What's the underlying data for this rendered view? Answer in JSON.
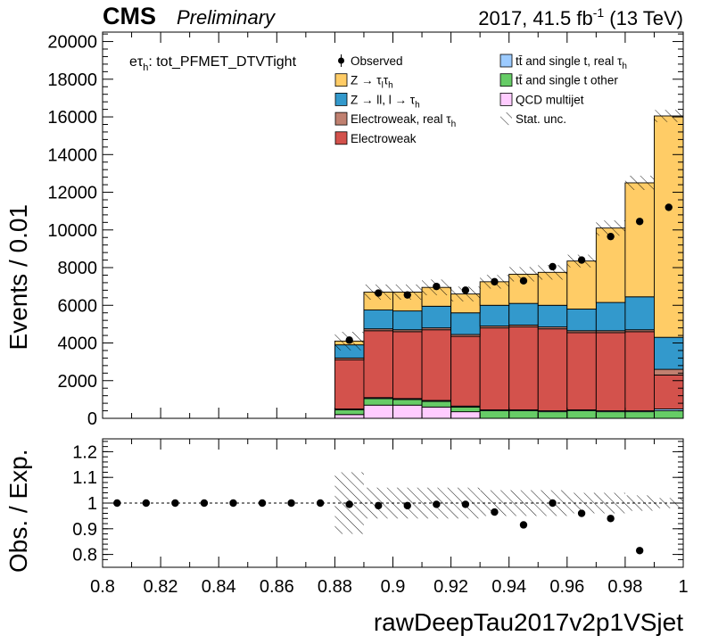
{
  "header": {
    "experiment": "CMS",
    "status": "Preliminary",
    "lumi_prefix": "2017, 41.5 fb",
    "lumi_exp": "-1",
    "lumi_suffix": " (13 TeV)"
  },
  "channel_label": {
    "prefix": "eτ",
    "sub": "h",
    "suffix": ": tot_PFMET_DTVTight"
  },
  "colors": {
    "ztt": "#ffcc66",
    "zll": "#3399cc",
    "ewk_real_tau": "#c08070",
    "ewk": "#d3524c",
    "ttbar_real_tau": "#9ccbff",
    "ttbar_other": "#66cc66",
    "qcd": "#ffccff"
  },
  "legend": [
    {
      "key": "observed",
      "label": "Observed",
      "sub": "",
      "style": "marker"
    },
    {
      "key": "ttbar_real_tau",
      "label": "tt̄ and single t, real τ",
      "sub": "h",
      "style": "box"
    },
    {
      "key": "ztt",
      "label": "Z → ττ",
      "sub": "l h",
      "style": "box"
    },
    {
      "key": "ttbar_other",
      "label": "tt̄ and single t other",
      "sub": "",
      "style": "box"
    },
    {
      "key": "zll",
      "label": "Z → ll, l → τ",
      "sub": "h",
      "style": "box"
    },
    {
      "key": "qcd",
      "label": "QCD multijet",
      "sub": "",
      "style": "box"
    },
    {
      "key": "ewk_real_tau",
      "label": "Electroweak, real τ",
      "sub": "h",
      "style": "box"
    },
    {
      "key": "stat",
      "label": "Stat. unc.",
      "sub": "",
      "style": "hatch"
    },
    {
      "key": "ewk",
      "label": "Electroweak",
      "sub": "",
      "style": "box"
    }
  ],
  "chart_data": [
    {
      "type": "bar",
      "stacked": true,
      "ylabel": "Events / 0.01",
      "ylim": [
        0,
        20500
      ],
      "xlim": [
        0.8,
        1.0
      ],
      "yticks": [
        0,
        2000,
        4000,
        6000,
        8000,
        10000,
        12000,
        14000,
        16000,
        18000,
        20000
      ],
      "bin_low_edges": [
        0.88,
        0.89,
        0.9,
        0.91,
        0.92,
        0.93,
        0.94,
        0.95,
        0.96,
        0.97,
        0.98,
        0.99
      ],
      "bin_width": 0.01,
      "series": [
        {
          "key": "qcd",
          "name": "QCD multijet",
          "values": [
            200,
            700,
            700,
            600,
            350,
            0,
            0,
            0,
            0,
            0,
            0,
            0
          ]
        },
        {
          "key": "ttbar_other",
          "name": "tt̄ and single t other",
          "values": [
            250,
            350,
            300,
            300,
            250,
            400,
            400,
            350,
            400,
            350,
            350,
            400
          ]
        },
        {
          "key": "ttbar_real_tau",
          "name": "tt̄ and single t, real τ",
          "values": [
            50,
            50,
            50,
            50,
            50,
            50,
            50,
            50,
            50,
            50,
            50,
            100
          ]
        },
        {
          "key": "ewk",
          "name": "Electroweak",
          "values": [
            2600,
            3550,
            3550,
            3750,
            3700,
            4350,
            4400,
            4350,
            4100,
            4150,
            4200,
            1800
          ]
        },
        {
          "key": "ewk_real_tau",
          "name": "Electroweak, real τ",
          "values": [
            100,
            100,
            100,
            100,
            100,
            100,
            100,
            100,
            100,
            100,
            100,
            300
          ]
        },
        {
          "key": "zll",
          "name": "Z → ll, l → τh",
          "values": [
            700,
            1000,
            1000,
            1150,
            1150,
            1100,
            1150,
            1150,
            1150,
            1500,
            1750,
            1700
          ]
        },
        {
          "key": "ztt",
          "name": "Z → τlτh",
          "values": [
            200,
            950,
            1000,
            1000,
            1000,
            1250,
            1550,
            1750,
            2550,
            3950,
            6050,
            11750
          ]
        }
      ],
      "stat_unc_rel": [
        0.12,
        0.06,
        0.06,
        0.06,
        0.06,
        0.05,
        0.05,
        0.05,
        0.04,
        0.04,
        0.03,
        0.02
      ],
      "observed": {
        "name": "Observed",
        "x": [
          0.885,
          0.895,
          0.905,
          0.915,
          0.925,
          0.935,
          0.945,
          0.955,
          0.965,
          0.975,
          0.985,
          0.995
        ],
        "y": [
          4150,
          6650,
          6550,
          7000,
          6800,
          7250,
          7300,
          8050,
          8400,
          9650,
          10450,
          11200
        ]
      }
    },
    {
      "type": "scatter",
      "ylabel": "Obs. / Exp.",
      "xlabel": "rawDeepTau2017v2p1VSjet",
      "ylim": [
        0.75,
        1.25
      ],
      "xlim": [
        0.8,
        1.0
      ],
      "yticks": [
        0.8,
        0.9,
        1.0,
        1.1,
        1.2
      ],
      "ytick_labels": [
        "0.8",
        "0.9",
        "1",
        "1.1",
        "1.2"
      ],
      "xticks": [
        0.8,
        0.82,
        0.84,
        0.86,
        0.88,
        0.9,
        0.92,
        0.94,
        0.96,
        0.98,
        1.0
      ],
      "xtick_labels": [
        "0.8",
        "0.82",
        "0.84",
        "0.86",
        "0.88",
        "0.9",
        "0.92",
        "0.94",
        "0.96",
        "0.98",
        "1"
      ],
      "reference_line": 1.0,
      "ratio": {
        "x": [
          0.805,
          0.815,
          0.825,
          0.835,
          0.845,
          0.855,
          0.865,
          0.875,
          0.885,
          0.895,
          0.905,
          0.915,
          0.925,
          0.935,
          0.945,
          0.955,
          0.965,
          0.975,
          0.985
        ],
        "y": [
          1.0,
          1.0,
          1.0,
          1.0,
          1.0,
          1.0,
          1.0,
          1.0,
          0.995,
          0.99,
          0.99,
          0.995,
          0.995,
          0.965,
          0.915,
          1.0,
          0.96,
          0.94,
          0.815
        ]
      }
    }
  ]
}
